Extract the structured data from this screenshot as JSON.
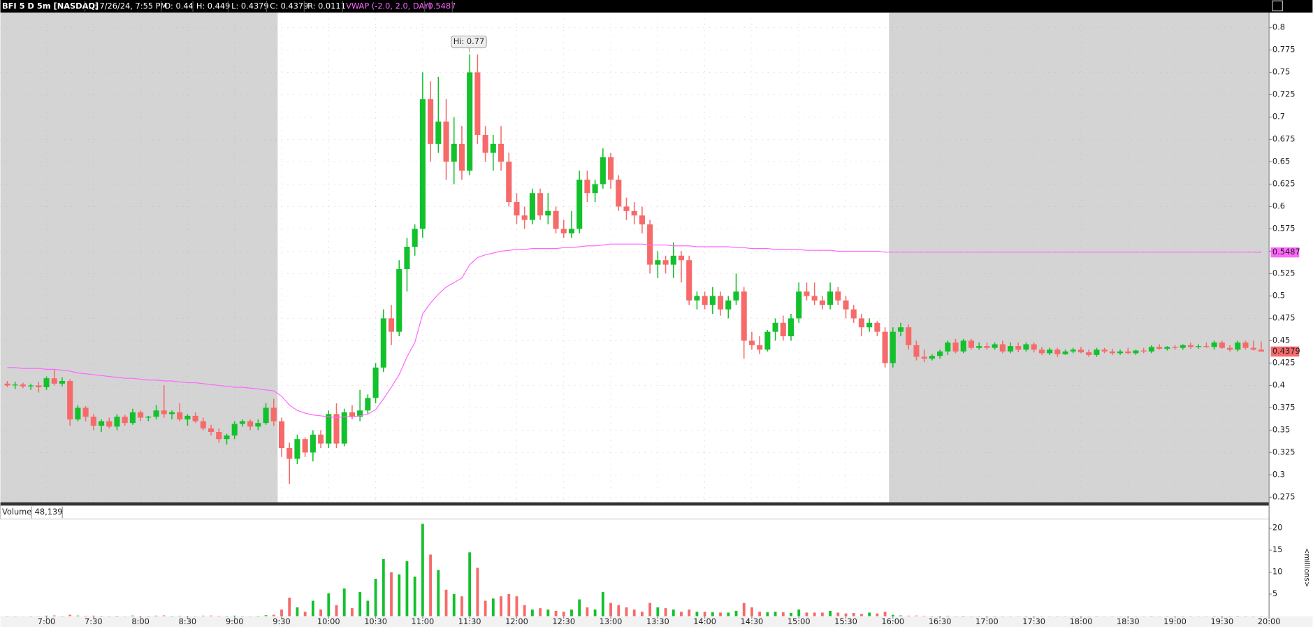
{
  "header": [
    "BFI 5 D 5m [NASDAQ]",
    "D: 7/26/24, 7:55 PM",
    "O: 0.44",
    "H: 0.449",
    "L: 0.4379",
    "C: 0.4379",
    "R: 0.0111",
    "VWAP (-2.0, 2.0, DAY)",
    "0.5487"
  ],
  "chart_data": {
    "type": "candlestick",
    "up_color": "#12c12c",
    "down_color": "#f66a6a",
    "vwap_color": "#ff66ff",
    "grid": true,
    "regular_session": [
      570,
      960
    ],
    "xlim": [
      390.6,
      1200
    ],
    "xticks": [
      {
        "value": 420,
        "label": "7:00"
      },
      {
        "value": 450,
        "label": "7:30"
      },
      {
        "value": 480,
        "label": "8:00"
      },
      {
        "value": 510,
        "label": "8:30"
      },
      {
        "value": 540,
        "label": "9:00"
      },
      {
        "value": 570,
        "label": "9:30"
      },
      {
        "value": 600,
        "label": "10:00"
      },
      {
        "value": 630,
        "label": "10:30"
      },
      {
        "value": 660,
        "label": "11:00"
      },
      {
        "value": 690,
        "label": "11:30"
      },
      {
        "value": 720,
        "label": "12:00"
      },
      {
        "value": 750,
        "label": "12:30"
      },
      {
        "value": 780,
        "label": "13:00"
      },
      {
        "value": 810,
        "label": "13:30"
      },
      {
        "value": 840,
        "label": "14:00"
      },
      {
        "value": 870,
        "label": "14:30"
      },
      {
        "value": 900,
        "label": "15:00"
      },
      {
        "value": 930,
        "label": "15:30"
      },
      {
        "value": 960,
        "label": "16:00"
      },
      {
        "value": 990,
        "label": "16:30"
      },
      {
        "value": 1020,
        "label": "17:00"
      },
      {
        "value": 1050,
        "label": "17:30"
      },
      {
        "value": 1080,
        "label": "18:00"
      },
      {
        "value": 1110,
        "label": "18:30"
      },
      {
        "value": 1140,
        "label": "19:00"
      },
      {
        "value": 1170,
        "label": "19:30"
      },
      {
        "value": 1200,
        "label": "20:00"
      }
    ],
    "ylim": [
      0.2694,
      0.8168
    ],
    "yticks": [
      0.275,
      0.3,
      0.325,
      0.35,
      0.375,
      0.4,
      0.425,
      0.45,
      0.475,
      0.5,
      0.525,
      0.55,
      0.575,
      0.6,
      0.625,
      0.65,
      0.675,
      0.7,
      0.725,
      0.75,
      0.775,
      0.8
    ],
    "volume_ylim": [
      0,
      21.9
    ],
    "volume_yticks": [
      5,
      10,
      15,
      20
    ],
    "volume_title": "Volume",
    "volume_label": "48,139",
    "volume_unit": "<millions>",
    "vwap_label": "0.5487",
    "last_label": "0.4379",
    "annotation": {
      "text": "Hi: 0.77",
      "x": 690,
      "y": 0.77
    },
    "x": [
      395,
      400,
      405,
      410,
      415,
      420,
      425,
      430,
      435,
      440,
      445,
      450,
      455,
      460,
      465,
      470,
      475,
      480,
      485,
      490,
      495,
      500,
      505,
      510,
      515,
      520,
      525,
      530,
      535,
      540,
      545,
      550,
      555,
      560,
      565,
      570,
      575,
      580,
      585,
      590,
      595,
      600,
      605,
      610,
      615,
      620,
      625,
      630,
      635,
      640,
      645,
      650,
      655,
      660,
      665,
      670,
      675,
      680,
      685,
      690,
      695,
      700,
      705,
      710,
      715,
      720,
      725,
      730,
      735,
      740,
      745,
      750,
      755,
      760,
      765,
      770,
      775,
      780,
      785,
      790,
      795,
      800,
      805,
      810,
      815,
      820,
      825,
      830,
      835,
      840,
      845,
      850,
      855,
      860,
      865,
      870,
      875,
      880,
      885,
      890,
      895,
      900,
      905,
      910,
      915,
      920,
      925,
      930,
      935,
      940,
      945,
      950,
      955,
      960,
      965,
      970,
      975,
      980,
      985,
      990,
      995,
      1000,
      1005,
      1010,
      1015,
      1020,
      1025,
      1030,
      1035,
      1040,
      1045,
      1050,
      1055,
      1060,
      1065,
      1070,
      1075,
      1080,
      1085,
      1090,
      1095,
      1100,
      1105,
      1110,
      1115,
      1120,
      1125,
      1130,
      1135,
      1140,
      1145,
      1150,
      1155,
      1160,
      1165,
      1170,
      1175,
      1180,
      1185,
      1190,
      1195
    ],
    "open": [
      0.402,
      0.4,
      0.401,
      0.399,
      0.4,
      0.398,
      0.408,
      0.402,
      0.405,
      0.362,
      0.375,
      0.365,
      0.355,
      0.36,
      0.354,
      0.365,
      0.358,
      0.37,
      0.364,
      0.365,
      0.372,
      0.368,
      0.37,
      0.362,
      0.366,
      0.36,
      0.352,
      0.348,
      0.34,
      0.344,
      0.357,
      0.36,
      0.354,
      0.358,
      0.375,
      0.36,
      0.33,
      0.318,
      0.34,
      0.325,
      0.345,
      0.335,
      0.368,
      0.335,
      0.37,
      0.365,
      0.372,
      0.386,
      0.42,
      0.475,
      0.46,
      0.53,
      0.555,
      0.575,
      0.72,
      0.67,
      0.695,
      0.65,
      0.67,
      0.64,
      0.75,
      0.68,
      0.66,
      0.67,
      0.65,
      0.605,
      0.59,
      0.585,
      0.615,
      0.59,
      0.595,
      0.575,
      0.57,
      0.575,
      0.63,
      0.615,
      0.625,
      0.655,
      0.63,
      0.6,
      0.595,
      0.59,
      0.58,
      0.535,
      0.54,
      0.535,
      0.545,
      0.54,
      0.495,
      0.5,
      0.49,
      0.5,
      0.485,
      0.495,
      0.505,
      0.45,
      0.445,
      0.44,
      0.46,
      0.47,
      0.455,
      0.475,
      0.505,
      0.5,
      0.495,
      0.49,
      0.505,
      0.495,
      0.485,
      0.475,
      0.465,
      0.47,
      0.46,
      0.425,
      0.46,
      0.465,
      0.445,
      0.432,
      0.43,
      0.433,
      0.438,
      0.448,
      0.438,
      0.45,
      0.442,
      0.444,
      0.442,
      0.446,
      0.438,
      0.444,
      0.44,
      0.446,
      0.44,
      0.436,
      0.44,
      0.435,
      0.438,
      0.44,
      0.437,
      0.434,
      0.44,
      0.438,
      0.436,
      0.438,
      0.436,
      0.439,
      0.438,
      0.443,
      0.441,
      0.443,
      0.442,
      0.445,
      0.443,
      0.444,
      0.443,
      0.448,
      0.442,
      0.44,
      0.448,
      0.442,
      0.44
    ],
    "high": [
      0.405,
      0.404,
      0.403,
      0.402,
      0.404,
      0.41,
      0.418,
      0.409,
      0.407,
      0.378,
      0.377,
      0.368,
      0.362,
      0.364,
      0.368,
      0.367,
      0.374,
      0.372,
      0.366,
      0.378,
      0.4,
      0.372,
      0.38,
      0.368,
      0.37,
      0.364,
      0.356,
      0.352,
      0.346,
      0.36,
      0.362,
      0.362,
      0.362,
      0.38,
      0.385,
      0.364,
      0.336,
      0.345,
      0.342,
      0.35,
      0.35,
      0.372,
      0.38,
      0.374,
      0.378,
      0.395,
      0.39,
      0.425,
      0.485,
      0.49,
      0.54,
      0.565,
      0.58,
      0.75,
      0.74,
      0.745,
      0.72,
      0.7,
      0.69,
      0.77,
      0.77,
      0.69,
      0.68,
      0.69,
      0.66,
      0.615,
      0.6,
      0.62,
      0.62,
      0.615,
      0.6,
      0.585,
      0.595,
      0.64,
      0.64,
      0.63,
      0.665,
      0.66,
      0.635,
      0.61,
      0.605,
      0.6,
      0.585,
      0.55,
      0.545,
      0.56,
      0.55,
      0.545,
      0.505,
      0.505,
      0.51,
      0.505,
      0.5,
      0.525,
      0.51,
      0.46,
      0.455,
      0.462,
      0.475,
      0.478,
      0.48,
      0.515,
      0.515,
      0.515,
      0.5,
      0.515,
      0.51,
      0.5,
      0.49,
      0.48,
      0.475,
      0.472,
      0.465,
      0.465,
      0.47,
      0.468,
      0.45,
      0.44,
      0.435,
      0.44,
      0.45,
      0.452,
      0.452,
      0.452,
      0.448,
      0.448,
      0.448,
      0.45,
      0.448,
      0.448,
      0.448,
      0.448,
      0.443,
      0.442,
      0.442,
      0.44,
      0.442,
      0.443,
      0.44,
      0.442,
      0.442,
      0.441,
      0.44,
      0.442,
      0.44,
      0.442,
      0.445,
      0.446,
      0.444,
      0.445,
      0.446,
      0.448,
      0.446,
      0.448,
      0.45,
      0.45,
      0.445,
      0.45,
      0.45,
      0.45,
      0.449
    ],
    "low": [
      0.398,
      0.396,
      0.397,
      0.395,
      0.392,
      0.395,
      0.4,
      0.399,
      0.355,
      0.36,
      0.36,
      0.35,
      0.348,
      0.352,
      0.35,
      0.355,
      0.356,
      0.36,
      0.36,
      0.362,
      0.364,
      0.362,
      0.36,
      0.355,
      0.358,
      0.35,
      0.344,
      0.336,
      0.334,
      0.34,
      0.354,
      0.35,
      0.35,
      0.356,
      0.355,
      0.32,
      0.29,
      0.312,
      0.32,
      0.315,
      0.33,
      0.33,
      0.33,
      0.332,
      0.362,
      0.36,
      0.368,
      0.38,
      0.415,
      0.445,
      0.455,
      0.505,
      0.545,
      0.565,
      0.65,
      0.66,
      0.63,
      0.625,
      0.63,
      0.635,
      0.67,
      0.65,
      0.64,
      0.64,
      0.6,
      0.58,
      0.575,
      0.58,
      0.585,
      0.58,
      0.57,
      0.565,
      0.565,
      0.57,
      0.605,
      0.605,
      0.62,
      0.62,
      0.595,
      0.585,
      0.58,
      0.57,
      0.525,
      0.52,
      0.525,
      0.52,
      0.515,
      0.49,
      0.485,
      0.485,
      0.48,
      0.478,
      0.475,
      0.49,
      0.43,
      0.44,
      0.435,
      0.438,
      0.45,
      0.45,
      0.45,
      0.47,
      0.495,
      0.49,
      0.485,
      0.485,
      0.49,
      0.475,
      0.47,
      0.455,
      0.46,
      0.455,
      0.42,
      0.42,
      0.455,
      0.44,
      0.428,
      0.426,
      0.428,
      0.43,
      0.434,
      0.436,
      0.436,
      0.44,
      0.44,
      0.44,
      0.44,
      0.436,
      0.436,
      0.437,
      0.438,
      0.437,
      0.434,
      0.434,
      0.432,
      0.434,
      0.436,
      0.436,
      0.432,
      0.432,
      0.436,
      0.434,
      0.434,
      0.435,
      0.434,
      0.436,
      0.436,
      0.44,
      0.439,
      0.44,
      0.44,
      0.441,
      0.441,
      0.442,
      0.44,
      0.441,
      0.438,
      0.438,
      0.44,
      0.439,
      0.4379
    ],
    "close": [
      0.4,
      0.401,
      0.399,
      0.4,
      0.398,
      0.408,
      0.402,
      0.405,
      0.362,
      0.375,
      0.365,
      0.355,
      0.36,
      0.354,
      0.365,
      0.358,
      0.37,
      0.364,
      0.365,
      0.372,
      0.368,
      0.37,
      0.362,
      0.366,
      0.36,
      0.352,
      0.348,
      0.34,
      0.344,
      0.357,
      0.36,
      0.354,
      0.358,
      0.375,
      0.36,
      0.33,
      0.318,
      0.34,
      0.325,
      0.345,
      0.335,
      0.368,
      0.335,
      0.37,
      0.365,
      0.372,
      0.386,
      0.42,
      0.475,
      0.46,
      0.53,
      0.555,
      0.575,
      0.72,
      0.67,
      0.695,
      0.65,
      0.67,
      0.64,
      0.75,
      0.68,
      0.66,
      0.67,
      0.65,
      0.605,
      0.59,
      0.585,
      0.615,
      0.59,
      0.595,
      0.575,
      0.57,
      0.575,
      0.63,
      0.615,
      0.625,
      0.655,
      0.63,
      0.6,
      0.595,
      0.59,
      0.58,
      0.535,
      0.54,
      0.535,
      0.545,
      0.54,
      0.495,
      0.5,
      0.49,
      0.5,
      0.485,
      0.495,
      0.505,
      0.45,
      0.445,
      0.44,
      0.46,
      0.47,
      0.455,
      0.475,
      0.505,
      0.5,
      0.495,
      0.49,
      0.505,
      0.495,
      0.485,
      0.475,
      0.465,
      0.47,
      0.46,
      0.425,
      0.46,
      0.465,
      0.445,
      0.432,
      0.43,
      0.433,
      0.438,
      0.448,
      0.438,
      0.45,
      0.442,
      0.444,
      0.442,
      0.446,
      0.438,
      0.444,
      0.44,
      0.446,
      0.44,
      0.436,
      0.44,
      0.435,
      0.438,
      0.44,
      0.437,
      0.434,
      0.44,
      0.438,
      0.436,
      0.438,
      0.436,
      0.439,
      0.438,
      0.443,
      0.441,
      0.443,
      0.442,
      0.445,
      0.443,
      0.444,
      0.443,
      0.448,
      0.442,
      0.44,
      0.448,
      0.442,
      0.44,
      0.4379
    ],
    "volume": [
      0.05,
      0.03,
      0.02,
      0.04,
      0.03,
      0.1,
      0.15,
      0.05,
      0.3,
      0.12,
      0.08,
      0.1,
      0.06,
      0.05,
      0.07,
      0.04,
      0.12,
      0.06,
      0.05,
      0.1,
      0.15,
      0.06,
      0.08,
      0.05,
      0.04,
      0.1,
      0.12,
      0.08,
      0.06,
      0.1,
      0.05,
      0.04,
      0.06,
      0.2,
      0.3,
      1.5,
      4.2,
      2.0,
      1.0,
      3.5,
      1.5,
      5.2,
      2.5,
      6.3,
      1.8,
      5.5,
      3.5,
      8.5,
      13.0,
      10.0,
      9.5,
      12.5,
      9.0,
      21.0,
      14.0,
      10.5,
      6.0,
      5.0,
      4.5,
      14.5,
      11.0,
      3.5,
      4.0,
      4.5,
      5.0,
      4.5,
      2.5,
      1.5,
      1.8,
      1.5,
      1.2,
      1.0,
      1.5,
      3.8,
      2.0,
      1.5,
      5.5,
      3.0,
      2.5,
      2.0,
      1.5,
      1.0,
      3.0,
      2.0,
      1.8,
      1.5,
      1.0,
      1.5,
      1.0,
      1.0,
      0.9,
      0.8,
      0.8,
      1.2,
      3.0,
      2.0,
      1.0,
      0.9,
      1.0,
      0.9,
      0.7,
      1.5,
      0.8,
      0.8,
      0.8,
      1.2,
      0.8,
      0.6,
      0.7,
      0.5,
      0.8,
      0.6,
      1.0,
      0.3,
      0.15,
      0.1,
      0.12,
      0.08,
      0.05,
      0.06,
      0.08,
      0.05,
      0.06,
      0.04,
      0.05,
      0.04,
      0.05,
      0.04,
      0.03,
      0.04,
      0.05,
      0.03,
      0.04,
      0.03,
      0.04,
      0.03,
      0.04,
      0.03,
      0.04,
      0.05,
      0.03,
      0.04,
      0.03,
      0.04,
      0.03,
      0.04,
      0.05,
      0.03,
      0.04,
      0.03,
      0.04,
      0.05,
      0.03,
      0.04,
      0.06,
      0.04,
      0.05,
      0.06,
      0.05,
      0.04,
      0.048139
    ],
    "vwap": [
      0.42,
      0.42,
      0.419,
      0.419,
      0.419,
      0.418,
      0.418,
      0.417,
      0.416,
      0.414,
      0.413,
      0.412,
      0.411,
      0.41,
      0.409,
      0.408,
      0.408,
      0.407,
      0.406,
      0.406,
      0.405,
      0.405,
      0.404,
      0.403,
      0.403,
      0.402,
      0.401,
      0.4,
      0.399,
      0.398,
      0.398,
      0.397,
      0.396,
      0.395,
      0.394,
      0.388,
      0.378,
      0.372,
      0.369,
      0.367,
      0.366,
      0.365,
      0.364,
      0.365,
      0.365,
      0.366,
      0.368,
      0.373,
      0.385,
      0.398,
      0.412,
      0.432,
      0.448,
      0.48,
      0.492,
      0.502,
      0.51,
      0.515,
      0.52,
      0.535,
      0.543,
      0.546,
      0.548,
      0.55,
      0.551,
      0.552,
      0.552,
      0.553,
      0.553,
      0.553,
      0.553,
      0.554,
      0.554,
      0.555,
      0.556,
      0.556,
      0.557,
      0.558,
      0.558,
      0.558,
      0.558,
      0.558,
      0.557,
      0.557,
      0.557,
      0.556,
      0.556,
      0.556,
      0.555,
      0.555,
      0.555,
      0.555,
      0.555,
      0.554,
      0.554,
      0.553,
      0.553,
      0.553,
      0.552,
      0.552,
      0.552,
      0.552,
      0.551,
      0.551,
      0.551,
      0.551,
      0.55,
      0.55,
      0.55,
      0.55,
      0.55,
      0.55,
      0.549,
      0.549,
      0.549,
      0.549,
      0.549,
      0.549,
      0.549,
      0.549,
      0.549,
      0.549,
      0.549,
      0.549,
      0.549,
      0.549,
      0.549,
      0.549,
      0.549,
      0.549,
      0.549,
      0.549,
      0.549,
      0.549,
      0.549,
      0.549,
      0.549,
      0.549,
      0.549,
      0.549,
      0.549,
      0.549,
      0.549,
      0.549,
      0.549,
      0.549,
      0.549,
      0.549,
      0.549,
      0.549,
      0.549,
      0.549,
      0.549,
      0.549,
      0.549,
      0.549,
      0.549,
      0.549,
      0.549,
      0.549,
      0.5487
    ]
  }
}
